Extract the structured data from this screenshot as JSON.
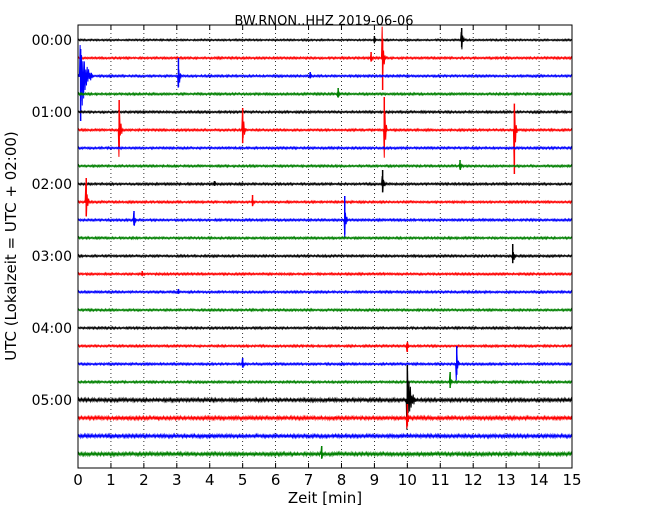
{
  "chart_data": {
    "type": "line",
    "title": "BW.RNON..HHZ 2019-06-06",
    "xlabel": "Zeit  [min]",
    "ylabel": "UTC (Lokalzeit = UTC + 02:00)",
    "xlim": [
      0,
      15
    ],
    "x_ticks": [
      "0",
      "1",
      "2",
      "3",
      "4",
      "5",
      "6",
      "7",
      "8",
      "9",
      "10",
      "11",
      "12",
      "13",
      "14",
      "15"
    ],
    "y_tick_labels": [
      "00:00",
      "01:00",
      "02:00",
      "03:00",
      "04:00",
      "05:00"
    ],
    "y_tick_rows": [
      0,
      4,
      8,
      12,
      16,
      20
    ],
    "row_interval_min": 15,
    "grid": "vertical dotted every minute",
    "trace_colors": [
      "#000000",
      "#ff0000",
      "#0000ff",
      "#008000"
    ],
    "rows": [
      {
        "label": "00:00",
        "noise": 0.8,
        "events": [
          {
            "x": 9.0,
            "amp": 4,
            "dir": 1
          },
          {
            "x": 11.65,
            "amp": 12,
            "dir": 1
          }
        ]
      },
      {
        "label": "00:15",
        "noise": 1.0,
        "events": [
          {
            "x": 8.9,
            "amp": 6,
            "dir": 1
          },
          {
            "x": 9.25,
            "amp": 32,
            "dir": -1
          }
        ]
      },
      {
        "label": "00:30",
        "noise": 1.0,
        "events": [
          {
            "x": 0.08,
            "amp": 45,
            "dir": -1,
            "coda": 0.35
          },
          {
            "x": 3.05,
            "amp": 18,
            "dir": 1
          },
          {
            "x": 7.05,
            "amp": 4,
            "dir": 1
          }
        ]
      },
      {
        "label": "00:45",
        "noise": 1.0,
        "events": [
          {
            "x": 7.9,
            "amp": 6,
            "dir": 1
          }
        ]
      },
      {
        "label": "01:00",
        "noise": 1.0,
        "events": []
      },
      {
        "label": "01:15",
        "noise": 1.0,
        "events": [
          {
            "x": 1.25,
            "amp": 30,
            "dir": 1
          },
          {
            "x": 5.0,
            "amp": 22,
            "dir": 1
          },
          {
            "x": 9.3,
            "amp": 33,
            "dir": 1
          },
          {
            "x": 13.25,
            "amp": 44,
            "dir": -1
          }
        ]
      },
      {
        "label": "01:30",
        "noise": 1.0,
        "events": []
      },
      {
        "label": "01:45",
        "noise": 1.0,
        "events": [
          {
            "x": 11.6,
            "amp": 6,
            "dir": 1
          }
        ]
      },
      {
        "label": "02:00",
        "noise": 1.0,
        "events": [
          {
            "x": 4.15,
            "amp": 3,
            "dir": 1
          },
          {
            "x": 9.25,
            "amp": 14,
            "dir": 1
          }
        ]
      },
      {
        "label": "02:15",
        "noise": 1.0,
        "events": [
          {
            "x": 0.25,
            "amp": 24,
            "dir": 1
          },
          {
            "x": 5.3,
            "amp": 7,
            "dir": 1
          }
        ]
      },
      {
        "label": "02:30",
        "noise": 1.0,
        "events": [
          {
            "x": 1.7,
            "amp": 9,
            "dir": 1
          },
          {
            "x": 8.1,
            "amp": 24,
            "dir": 1
          }
        ]
      },
      {
        "label": "02:45",
        "noise": 1.0,
        "events": []
      },
      {
        "label": "03:00",
        "noise": 1.0,
        "events": [
          {
            "x": 13.2,
            "amp": 12,
            "dir": 1
          }
        ]
      },
      {
        "label": "03:15",
        "noise": 1.0,
        "events": [
          {
            "x": 1.95,
            "amp": 3,
            "dir": 1
          }
        ]
      },
      {
        "label": "03:30",
        "noise": 1.0,
        "events": [
          {
            "x": 3.05,
            "amp": 3,
            "dir": 1
          }
        ]
      },
      {
        "label": "03:45",
        "noise": 1.0,
        "events": []
      },
      {
        "label": "04:00",
        "noise": 1.0,
        "events": []
      },
      {
        "label": "04:15",
        "noise": 1.0,
        "events": [
          {
            "x": 10.0,
            "amp": 6,
            "dir": -1
          }
        ]
      },
      {
        "label": "04:30",
        "noise": 1.0,
        "events": [
          {
            "x": 5.0,
            "amp": 6,
            "dir": 1
          },
          {
            "x": 11.5,
            "amp": 18,
            "dir": 1
          }
        ]
      },
      {
        "label": "04:45",
        "noise": 1.0,
        "events": [
          {
            "x": 11.3,
            "amp": 10,
            "dir": 1
          }
        ]
      },
      {
        "label": "05:00",
        "noise": 1.6,
        "events": [
          {
            "x": 10.0,
            "amp": 35,
            "dir": 1,
            "coda": 0.25
          }
        ]
      },
      {
        "label": "05:15",
        "noise": 1.6,
        "events": [
          {
            "x": 10.0,
            "amp": 14,
            "dir": 1
          }
        ]
      },
      {
        "label": "05:30",
        "noise": 1.6,
        "events": []
      },
      {
        "label": "05:45",
        "noise": 1.6,
        "events": [
          {
            "x": 7.4,
            "amp": 8,
            "dir": 1
          }
        ]
      }
    ]
  }
}
